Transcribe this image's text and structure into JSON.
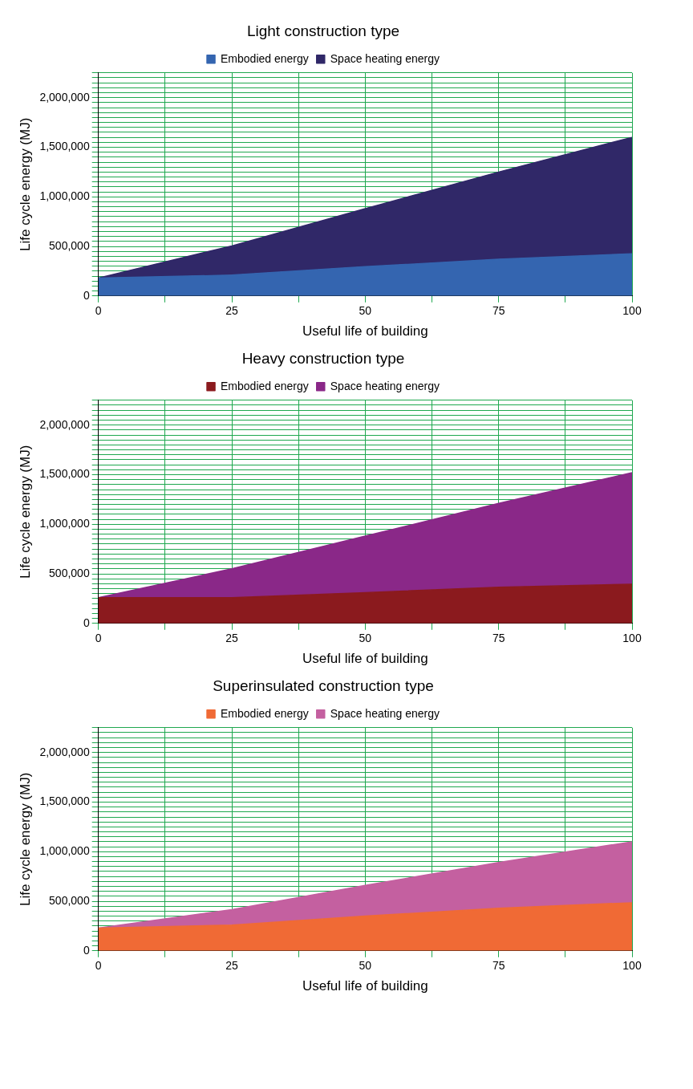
{
  "chart_data": [
    {
      "type": "area",
      "title": "Light construction type",
      "xlabel": "Useful life of building",
      "ylabel": "Life cycle energy (MJ)",
      "stacked": true,
      "grid": true,
      "legend": "top",
      "x": [
        0,
        25,
        50,
        75,
        100
      ],
      "xlim": [
        0,
        100
      ],
      "xticks": [
        0,
        {
          "value": 12.5,
          "label": null
        },
        25,
        {
          "value": 37.5,
          "label": null
        },
        50,
        {
          "value": 62.5,
          "label": null
        },
        75,
        {
          "value": 87.5,
          "label": null
        },
        100
      ],
      "ylim": [
        0,
        2250000
      ],
      "yticks": [
        {
          "value": 0,
          "label": "0"
        },
        {
          "value": 50000,
          "label": null
        },
        {
          "value": 100000,
          "label": null
        },
        {
          "value": 150000,
          "label": null
        },
        {
          "value": 200000,
          "label": null
        },
        {
          "value": 250000,
          "label": null
        },
        {
          "value": 300000,
          "label": null
        },
        {
          "value": 350000,
          "label": null
        },
        {
          "value": 400000,
          "label": null
        },
        {
          "value": 450000,
          "label": null
        },
        {
          "value": 500000,
          "label": "500,000"
        },
        {
          "value": 550000,
          "label": null
        },
        {
          "value": 600000,
          "label": null
        },
        {
          "value": 650000,
          "label": null
        },
        {
          "value": 700000,
          "label": null
        },
        {
          "value": 750000,
          "label": null
        },
        {
          "value": 800000,
          "label": null
        },
        {
          "value": 850000,
          "label": null
        },
        {
          "value": 900000,
          "label": null
        },
        {
          "value": 950000,
          "label": null
        },
        {
          "value": 1000000,
          "label": "1,000,000"
        },
        {
          "value": 1050000,
          "label": null
        },
        {
          "value": 1100000,
          "label": null
        },
        {
          "value": 1150000,
          "label": null
        },
        {
          "value": 1200000,
          "label": null
        },
        {
          "value": 1250000,
          "label": null
        },
        {
          "value": 1300000,
          "label": null
        },
        {
          "value": 1350000,
          "label": null
        },
        {
          "value": 1400000,
          "label": null
        },
        {
          "value": 1450000,
          "label": null
        },
        {
          "value": 1500000,
          "label": "1,500,000"
        },
        {
          "value": 1550000,
          "label": null
        },
        {
          "value": 1600000,
          "label": null
        },
        {
          "value": 1650000,
          "label": null
        },
        {
          "value": 1700000,
          "label": null
        },
        {
          "value": 1750000,
          "label": null
        },
        {
          "value": 1800000,
          "label": null
        },
        {
          "value": 1850000,
          "label": null
        },
        {
          "value": 1900000,
          "label": null
        },
        {
          "value": 1950000,
          "label": null
        },
        {
          "value": 2000000,
          "label": "2,000,000"
        },
        {
          "value": 2050000,
          "label": null
        },
        {
          "value": 2100000,
          "label": null
        },
        {
          "value": 2150000,
          "label": null
        },
        {
          "value": 2200000,
          "label": null
        },
        {
          "value": 2250000,
          "label": null
        }
      ],
      "series": [
        {
          "name": "Embodied energy",
          "color": "#3465b0",
          "values": [
            180000,
            210000,
            295000,
            370000,
            425000
          ]
        },
        {
          "name": "Space heating energy",
          "color": "#302868",
          "values": [
            0,
            295000,
            585000,
            880000,
            1175000
          ]
        }
      ]
    },
    {
      "type": "area",
      "title": "Heavy construction type",
      "xlabel": "Useful life of building",
      "ylabel": "Life cycle energy (MJ)",
      "stacked": true,
      "grid": true,
      "legend": "top",
      "x": [
        0,
        25,
        50,
        75,
        100
      ],
      "xlim": [
        0,
        100
      ],
      "xticks": [
        0,
        {
          "value": 12.5,
          "label": null
        },
        25,
        {
          "value": 37.5,
          "label": null
        },
        50,
        {
          "value": 62.5,
          "label": null
        },
        75,
        {
          "value": 87.5,
          "label": null
        },
        100
      ],
      "ylim": [
        0,
        2250000
      ],
      "yticks": [
        {
          "value": 0,
          "label": "0"
        },
        {
          "value": 50000,
          "label": null
        },
        {
          "value": 100000,
          "label": null
        },
        {
          "value": 150000,
          "label": null
        },
        {
          "value": 200000,
          "label": null
        },
        {
          "value": 250000,
          "label": null
        },
        {
          "value": 300000,
          "label": null
        },
        {
          "value": 350000,
          "label": null
        },
        {
          "value": 400000,
          "label": null
        },
        {
          "value": 450000,
          "label": null
        },
        {
          "value": 500000,
          "label": "500,000"
        },
        {
          "value": 550000,
          "label": null
        },
        {
          "value": 600000,
          "label": null
        },
        {
          "value": 650000,
          "label": null
        },
        {
          "value": 700000,
          "label": null
        },
        {
          "value": 750000,
          "label": null
        },
        {
          "value": 800000,
          "label": null
        },
        {
          "value": 850000,
          "label": null
        },
        {
          "value": 900000,
          "label": null
        },
        {
          "value": 950000,
          "label": null
        },
        {
          "value": 1000000,
          "label": "1,000,000"
        },
        {
          "value": 1050000,
          "label": null
        },
        {
          "value": 1100000,
          "label": null
        },
        {
          "value": 1150000,
          "label": null
        },
        {
          "value": 1200000,
          "label": null
        },
        {
          "value": 1250000,
          "label": null
        },
        {
          "value": 1300000,
          "label": null
        },
        {
          "value": 1350000,
          "label": null
        },
        {
          "value": 1400000,
          "label": null
        },
        {
          "value": 1450000,
          "label": null
        },
        {
          "value": 1500000,
          "label": "1,500,000"
        },
        {
          "value": 1550000,
          "label": null
        },
        {
          "value": 1600000,
          "label": null
        },
        {
          "value": 1650000,
          "label": null
        },
        {
          "value": 1700000,
          "label": null
        },
        {
          "value": 1750000,
          "label": null
        },
        {
          "value": 1800000,
          "label": null
        },
        {
          "value": 1850000,
          "label": null
        },
        {
          "value": 1900000,
          "label": null
        },
        {
          "value": 1950000,
          "label": null
        },
        {
          "value": 2000000,
          "label": "2,000,000"
        },
        {
          "value": 2050000,
          "label": null
        },
        {
          "value": 2100000,
          "label": null
        },
        {
          "value": 2150000,
          "label": null
        },
        {
          "value": 2200000,
          "label": null
        },
        {
          "value": 2250000,
          "label": null
        }
      ],
      "series": [
        {
          "name": "Embodied energy",
          "color": "#8b1a1e",
          "values": [
            260000,
            260000,
            310000,
            365000,
            395000
          ]
        },
        {
          "name": "Space heating energy",
          "color": "#8a2888",
          "values": [
            0,
            290000,
            570000,
            845000,
            1125000
          ]
        }
      ]
    },
    {
      "type": "area",
      "title": "Superinsulated construction type",
      "xlabel": "Useful life of building",
      "ylabel": "Life cycle energy (MJ)",
      "stacked": true,
      "grid": true,
      "legend": "top",
      "x": [
        0,
        25,
        50,
        75,
        100
      ],
      "xlim": [
        0,
        100
      ],
      "xticks": [
        0,
        {
          "value": 12.5,
          "label": null
        },
        25,
        {
          "value": 37.5,
          "label": null
        },
        50,
        {
          "value": 62.5,
          "label": null
        },
        75,
        {
          "value": 87.5,
          "label": null
        },
        100
      ],
      "ylim": [
        0,
        2250000
      ],
      "yticks": [
        {
          "value": 0,
          "label": "0"
        },
        {
          "value": 50000,
          "label": null
        },
        {
          "value": 100000,
          "label": null
        },
        {
          "value": 150000,
          "label": null
        },
        {
          "value": 200000,
          "label": null
        },
        {
          "value": 250000,
          "label": null
        },
        {
          "value": 300000,
          "label": null
        },
        {
          "value": 350000,
          "label": null
        },
        {
          "value": 400000,
          "label": null
        },
        {
          "value": 450000,
          "label": null
        },
        {
          "value": 500000,
          "label": "500,000"
        },
        {
          "value": 550000,
          "label": null
        },
        {
          "value": 600000,
          "label": null
        },
        {
          "value": 650000,
          "label": null
        },
        {
          "value": 700000,
          "label": null
        },
        {
          "value": 750000,
          "label": null
        },
        {
          "value": 800000,
          "label": null
        },
        {
          "value": 850000,
          "label": null
        },
        {
          "value": 900000,
          "label": null
        },
        {
          "value": 950000,
          "label": null
        },
        {
          "value": 1000000,
          "label": "1,000,000"
        },
        {
          "value": 1050000,
          "label": null
        },
        {
          "value": 1100000,
          "label": null
        },
        {
          "value": 1150000,
          "label": null
        },
        {
          "value": 1200000,
          "label": null
        },
        {
          "value": 1250000,
          "label": null
        },
        {
          "value": 1300000,
          "label": null
        },
        {
          "value": 1350000,
          "label": null
        },
        {
          "value": 1400000,
          "label": null
        },
        {
          "value": 1450000,
          "label": null
        },
        {
          "value": 1500000,
          "label": "1,500,000"
        },
        {
          "value": 1550000,
          "label": null
        },
        {
          "value": 1600000,
          "label": null
        },
        {
          "value": 1650000,
          "label": null
        },
        {
          "value": 1700000,
          "label": null
        },
        {
          "value": 1750000,
          "label": null
        },
        {
          "value": 1800000,
          "label": null
        },
        {
          "value": 1850000,
          "label": null
        },
        {
          "value": 1900000,
          "label": null
        },
        {
          "value": 1950000,
          "label": null
        },
        {
          "value": 2000000,
          "label": "2,000,000"
        },
        {
          "value": 2050000,
          "label": null
        },
        {
          "value": 2100000,
          "label": null
        },
        {
          "value": 2150000,
          "label": null
        },
        {
          "value": 2200000,
          "label": null
        },
        {
          "value": 2250000,
          "label": null
        }
      ],
      "series": [
        {
          "name": "Embodied energy",
          "color": "#f06a35",
          "values": [
            230000,
            260000,
            350000,
            430000,
            485000
          ]
        },
        {
          "name": "Space heating energy",
          "color": "#c460a0",
          "values": [
            0,
            155000,
            310000,
            460000,
            615000
          ]
        }
      ]
    }
  ]
}
